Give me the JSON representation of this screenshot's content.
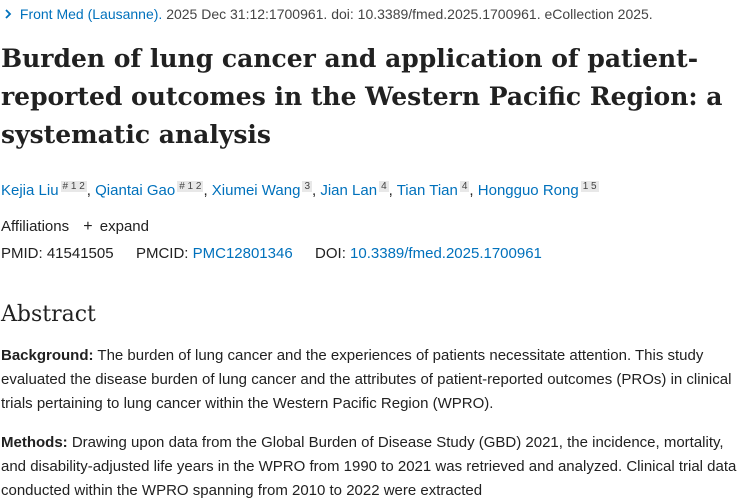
{
  "citation": {
    "journal": "Front Med (Lausanne).",
    "rest": "2025 Dec 31:12:1700961. doi: 10.3389/fmed.2025.1700961. eCollection 2025."
  },
  "title": "Burden of lung cancer and application of patient-reported outcomes in the Western Pacific Region: a systematic analysis",
  "authors": [
    {
      "name": "Kejia Liu",
      "sup": "# 1 2"
    },
    {
      "name": "Qiantai Gao",
      "sup": "# 1 2"
    },
    {
      "name": "Xiumei Wang",
      "sup": "3"
    },
    {
      "name": "Jian Lan",
      "sup": "4"
    },
    {
      "name": "Tian Tian",
      "sup": "4"
    },
    {
      "name": "Hongguo Rong",
      "sup": "1 5"
    }
  ],
  "affiliations": {
    "label": "Affiliations",
    "expand": "expand"
  },
  "ids": {
    "pmid_label": "PMID:",
    "pmid": "41541505",
    "pmcid_label": "PMCID:",
    "pmcid": "PMC12801346",
    "doi_label": "DOI:",
    "doi": "10.3389/fmed.2025.1700961"
  },
  "abstract": {
    "heading": "Abstract",
    "background_label": "Background:",
    "background_text": "The burden of lung cancer and the experiences of patients necessitate attention. This study evaluated the disease burden of lung cancer and the attributes of patient-reported outcomes (PROs) in clinical trials pertaining to lung cancer within the Western Pacific Region (WPRO).",
    "methods_label": "Methods:",
    "methods_text": "Drawing upon data from the Global Burden of Disease Study (GBD) 2021, the incidence, mortality, and disability-adjusted life years in the WPRO from 1990 to 2021 was retrieved and analyzed. Clinical trial data conducted within the WPRO spanning from 2010 to 2022 were extracted"
  },
  "colors": {
    "link": "#0071bc",
    "text": "#212121"
  }
}
